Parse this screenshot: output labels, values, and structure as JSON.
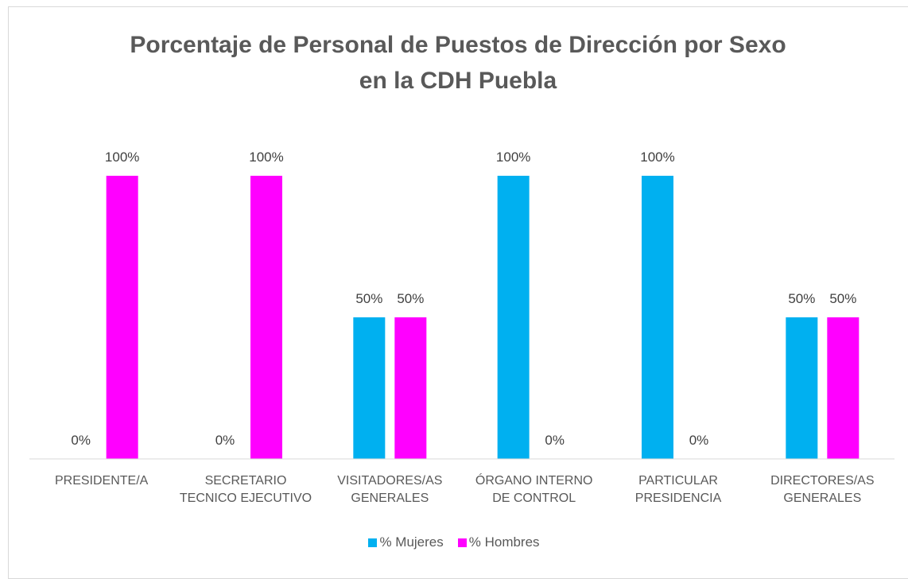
{
  "chart_data": {
    "type": "bar",
    "title": "Porcentaje de Personal de Puestos de Dirección por Sexo\nen la CDH Puebla",
    "categories": [
      "PRESIDENTE/A",
      "SECRETARIO\nTECNICO EJECUTIVO",
      "VISITADORES/AS\nGENERALES",
      "ÓRGANO INTERNO\nDE CONTROL",
      "PARTICULAR\nPRESIDENCIA",
      "DIRECTORES/AS\nGENERALES"
    ],
    "series": [
      {
        "name": "% Mujeres",
        "color": "#00b0f0",
        "values": [
          0,
          0,
          50,
          100,
          100,
          50
        ],
        "value_labels": [
          "0%",
          "0%",
          "50%",
          "100%",
          "100%",
          "50%"
        ]
      },
      {
        "name": "% Hombres",
        "color": "#ff00ff",
        "values": [
          100,
          100,
          50,
          0,
          0,
          50
        ],
        "value_labels": [
          "100%",
          "100%",
          "50%",
          "0%",
          "0%",
          "50%"
        ]
      }
    ],
    "ylim": [
      0,
      100
    ],
    "grid": false,
    "legend": "bottom"
  }
}
